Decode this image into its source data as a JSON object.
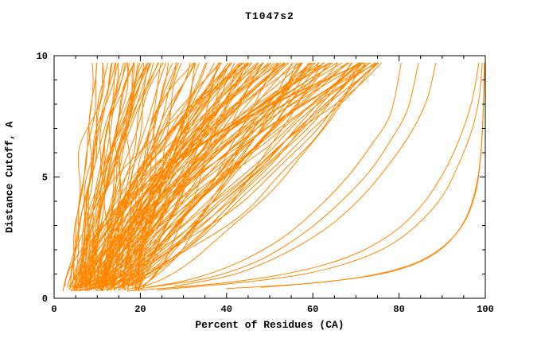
{
  "chart_data": {
    "type": "line",
    "title": "T1047s2",
    "xlabel": "Percent of Residues (CA)",
    "ylabel": "Distance Cutoff, A",
    "xlim": [
      0,
      100
    ],
    "ylim": [
      0,
      10
    ],
    "x_major_ticks": [
      0,
      20,
      40,
      60,
      80,
      100
    ],
    "x_minor_step": 5,
    "y_major_ticks": [
      0,
      5,
      10
    ],
    "y_minor_step": 1,
    "grid": false,
    "legend": "none",
    "background": "#ffffff",
    "axis_color": "#000000",
    "curve_color": "#ff8700",
    "series_description": "Cumulative distance-cutoff curves, one orange line per predicted model, forming a dense band rising from lower-left toward upper-middle with a few shallow outlier curves reaching the far right",
    "band_curves": {
      "count": 150,
      "seed": 11,
      "y_start_range": [
        0.3,
        0.55
      ],
      "y_top": 9.7,
      "x_start_range": [
        3,
        20
      ],
      "x_top_max": 76,
      "power_range": [
        0.55,
        1.9
      ],
      "wiggle": 0.9
    },
    "outlier_curves": [
      {
        "name": "right-outlier-1",
        "points": [
          [
            24,
            0.35
          ],
          [
            34,
            0.5
          ],
          [
            46,
            0.7
          ],
          [
            58,
            1.0
          ],
          [
            68,
            1.45
          ],
          [
            77,
            2.1
          ],
          [
            84,
            3.0
          ],
          [
            90,
            4.2
          ],
          [
            94,
            5.6
          ],
          [
            97,
            7.0
          ],
          [
            98.6,
            8.3
          ],
          [
            99.3,
            9.7
          ]
        ]
      },
      {
        "name": "right-outlier-2",
        "points": [
          [
            17,
            0.3
          ],
          [
            28,
            0.45
          ],
          [
            40,
            0.65
          ],
          [
            52,
            0.95
          ],
          [
            63,
            1.4
          ],
          [
            72,
            2.0
          ],
          [
            80,
            2.9
          ],
          [
            86,
            4.0
          ],
          [
            91,
            5.4
          ],
          [
            94.5,
            6.8
          ],
          [
            97,
            8.2
          ],
          [
            98.5,
            9.7
          ]
        ]
      },
      {
        "name": "far-right-vertical-1",
        "points": [
          [
            40,
            0.4
          ],
          [
            58,
            0.6
          ],
          [
            72,
            0.9
          ],
          [
            83,
            1.4
          ],
          [
            90,
            2.1
          ],
          [
            95,
            3.1
          ],
          [
            97.8,
            4.4
          ],
          [
            99.0,
            6.0
          ],
          [
            99.5,
            7.6
          ],
          [
            99.8,
            9.7
          ]
        ]
      },
      {
        "name": "far-right-vertical-2",
        "points": [
          [
            48,
            0.45
          ],
          [
            64,
            0.7
          ],
          [
            77,
            1.05
          ],
          [
            86,
            1.6
          ],
          [
            92,
            2.4
          ],
          [
            96,
            3.5
          ],
          [
            98.3,
            5.0
          ],
          [
            99.2,
            6.6
          ],
          [
            99.6,
            8.1
          ],
          [
            99.9,
            9.7
          ]
        ]
      },
      {
        "name": "mid-right-1",
        "points": [
          [
            28,
            0.5
          ],
          [
            42,
            1.0
          ],
          [
            54,
            1.9
          ],
          [
            64,
            3.0
          ],
          [
            72,
            4.3
          ],
          [
            78,
            5.6
          ],
          [
            83,
            6.9
          ],
          [
            86.5,
            8.2
          ],
          [
            88.5,
            9.7
          ]
        ]
      },
      {
        "name": "mid-right-2",
        "points": [
          [
            22,
            0.45
          ],
          [
            36,
            0.85
          ],
          [
            48,
            1.6
          ],
          [
            58,
            2.7
          ],
          [
            66,
            3.9
          ],
          [
            73,
            5.2
          ],
          [
            78,
            6.5
          ],
          [
            82,
            7.8
          ],
          [
            84.5,
            9.7
          ]
        ]
      },
      {
        "name": "mid-right-3",
        "points": [
          [
            20,
            0.4
          ],
          [
            32,
            0.8
          ],
          [
            43,
            1.5
          ],
          [
            53,
            2.5
          ],
          [
            61,
            3.7
          ],
          [
            68,
            5.0
          ],
          [
            73.5,
            6.3
          ],
          [
            78,
            7.6
          ],
          [
            80.5,
            9.7
          ]
        ]
      }
    ]
  }
}
